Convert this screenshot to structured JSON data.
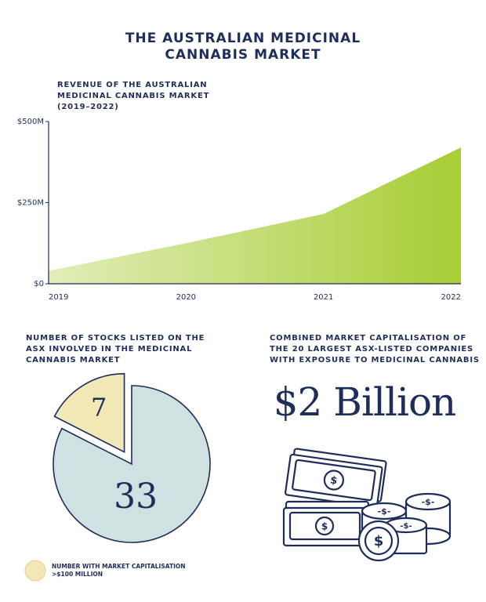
{
  "title": [
    "THE AUSTRALIAN MEDICINAL",
    "CANNABIS MARKET"
  ],
  "chart_data": [
    {
      "type": "area",
      "title": [
        "REVENUE OF THE AUSTRALIAN",
        "MEDICINAL CANNABIS MARKET",
        "(2019–2022)"
      ],
      "categories": [
        "2019",
        "2020",
        "2021",
        "2022"
      ],
      "values": [
        40,
        125,
        215,
        420
      ],
      "color": "#a8cd35",
      "ylim": [
        0,
        500
      ],
      "yticks": [
        {
          "value": 0,
          "label": "$0"
        },
        {
          "value": 250,
          "label": "$250M"
        },
        {
          "value": 500,
          "label": "$500M"
        }
      ]
    },
    {
      "type": "pie",
      "title": [
        "NUMBER OF STOCKS LISTED ON THE",
        "ASX INVOLVED IN THE MEDICINAL",
        "CANNABIS MARKET"
      ],
      "categories": [
        null,
        "NUMBER WITH MARKET CAPITALISATION >$100 MILLION"
      ],
      "values": [
        33,
        7
      ],
      "colors": [
        "#cfe1e0",
        "#f2e8b5"
      ]
    }
  ],
  "market_cap": {
    "heading": [
      "COMBINED MARKET CAPITALISATION OF",
      "THE 20 LARGEST ASX-LISTED COMPANIES",
      "WITH EXPOSURE TO MEDICINAL CANNABIS"
    ],
    "value": "$2 Billion"
  }
}
